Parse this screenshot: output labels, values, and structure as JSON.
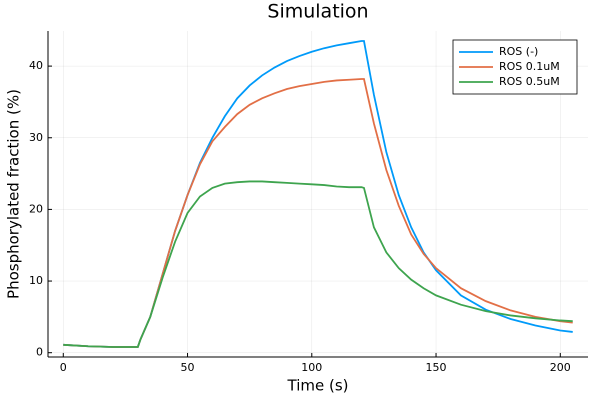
{
  "chart_data": {
    "type": "line",
    "title": "Simulation",
    "x_label": "Time (s)",
    "y_label": "Phosphorylated fraction (%)",
    "x": [
      0,
      10,
      20,
      30,
      31,
      35,
      40,
      45,
      50,
      55,
      60,
      65,
      70,
      75,
      80,
      85,
      90,
      95,
      100,
      105,
      110,
      115,
      120,
      121,
      125,
      130,
      135,
      140,
      145,
      150,
      160,
      170,
      180,
      190,
      200,
      205
    ],
    "series": [
      {
        "name": "ROS (-)",
        "color": "#009af9",
        "values": [
          1.1,
          0.9,
          0.8,
          0.8,
          1.8,
          5,
          11,
          17,
          22,
          26.5,
          30,
          33,
          35.5,
          37.3,
          38.7,
          39.8,
          40.7,
          41.4,
          42,
          42.5,
          42.9,
          43.2,
          43.5,
          43.5,
          36,
          28,
          22,
          17.5,
          14,
          11.5,
          8,
          6,
          4.7,
          3.8,
          3.1,
          2.9
        ]
      },
      {
        "name": "ROS 0.1uM",
        "color": "#e26f46",
        "values": [
          1.1,
          0.9,
          0.8,
          0.8,
          1.8,
          5,
          11,
          17,
          22,
          26.3,
          29.5,
          31.5,
          33.3,
          34.6,
          35.5,
          36.2,
          36.8,
          37.2,
          37.5,
          37.8,
          38,
          38.1,
          38.2,
          38.2,
          32,
          25.5,
          20.5,
          16.5,
          13.8,
          11.8,
          9,
          7.2,
          5.9,
          5,
          4.4,
          4.2
        ]
      },
      {
        "name": "ROS 0.5uM",
        "color": "#3ea44e",
        "values": [
          1.1,
          0.9,
          0.8,
          0.8,
          1.8,
          5,
          10.5,
          15.5,
          19.5,
          21.8,
          23,
          23.6,
          23.8,
          23.9,
          23.9,
          23.8,
          23.7,
          23.6,
          23.5,
          23.4,
          23.2,
          23.1,
          23.1,
          23,
          17.5,
          14,
          11.8,
          10.2,
          9,
          8,
          6.7,
          5.8,
          5.2,
          4.8,
          4.5,
          4.4
        ]
      }
    ],
    "xlim": [
      -6.15,
      211.15
    ],
    "xticks": [
      0,
      50,
      100,
      150,
      200
    ],
    "ylim": [
      -0.6,
      44.9
    ],
    "yticks": [
      0,
      10,
      20,
      30,
      40
    ],
    "grid": true,
    "legend": "top-right"
  }
}
